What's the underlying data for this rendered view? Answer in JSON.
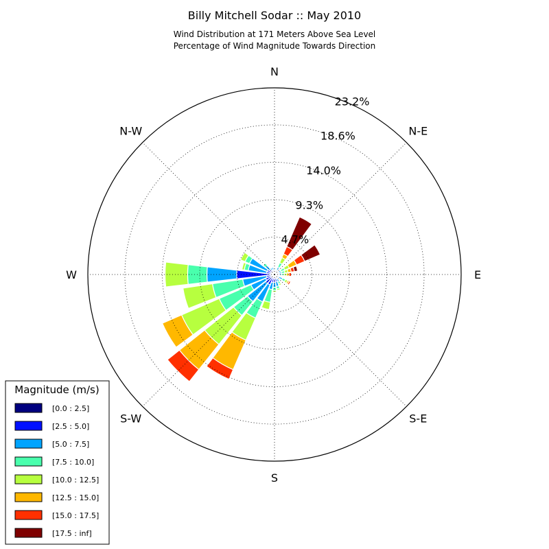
{
  "chart_data": {
    "type": "windrose",
    "title": "Billy Mitchell Sodar :: May 2010",
    "subtitle_lines": [
      "Wind Distribution at 171 Meters Above Sea Level",
      "Percentage of Wind Magnitude Towards Direction"
    ],
    "directions": [
      "N",
      "N-E",
      "E",
      "S-E",
      "S",
      "S-W",
      "W",
      "N-W"
    ],
    "radial_ticks": [
      "4.7%",
      "9.3%",
      "14.0%",
      "18.6%",
      "23.2%"
    ],
    "radial_tick_values": [
      4.65,
      9.3,
      13.95,
      18.6,
      23.2
    ],
    "rmax": 23.2,
    "legend_title": "Magnitude (m/s)",
    "bins": [
      {
        "label": "[0.0 : 2.5]",
        "color": "#00007f"
      },
      {
        "label": "[2.5 : 5.0]",
        "color": "#0010ff"
      },
      {
        "label": "[5.0 : 7.5]",
        "color": "#00a4ff"
      },
      {
        "label": "[7.5 : 10.0]",
        "color": "#49ffad"
      },
      {
        "label": "[10.0 : 12.5]",
        "color": "#b7ff3f"
      },
      {
        "label": "[12.5 : 15.0]",
        "color": "#ffb800"
      },
      {
        "label": "[15.0 : 17.5]",
        "color": "#ff3000"
      },
      {
        "label": "[17.5 : inf]",
        "color": "#7f0000"
      }
    ],
    "sectors": [
      {
        "bearing": 0,
        "values": [
          0.3,
          0.2,
          0.2,
          0,
          0,
          0,
          0,
          0
        ]
      },
      {
        "bearing": 30,
        "values": [
          0.3,
          0.3,
          0.4,
          0.6,
          0.7,
          0.5,
          1.0,
          4.0
        ]
      },
      {
        "bearing": 60,
        "values": [
          0.3,
          0.3,
          0.3,
          0.5,
          0.6,
          1.0,
          1.1,
          2.1
        ]
      },
      {
        "bearing": 75,
        "values": [
          0.3,
          0.3,
          0.3,
          0.4,
          0.4,
          0.4,
          0.4,
          0.4
        ]
      },
      {
        "bearing": 90,
        "values": [
          0.3,
          0.3,
          0.3,
          0.3,
          0.3,
          0.3,
          0.3,
          0
        ]
      },
      {
        "bearing": 120,
        "values": [
          0.3,
          0.3,
          0.5,
          0.4,
          0.3,
          0.2,
          0.2,
          0
        ]
      },
      {
        "bearing": 150,
        "values": [
          0.3,
          0.3,
          0.4,
          0.3,
          0.2,
          0,
          0,
          0
        ]
      },
      {
        "bearing": 165,
        "values": [
          0.3,
          0.6,
          0.6,
          0.3,
          0.2,
          0,
          0,
          0
        ]
      },
      {
        "bearing": 180,
        "values": [
          0.3,
          0.7,
          0.6,
          0.4,
          0.2,
          0,
          0,
          0
        ]
      },
      {
        "bearing": 195,
        "values": [
          0.3,
          0.7,
          0.9,
          1.6,
          0.9,
          0,
          0,
          0
        ]
      },
      {
        "bearing": 210,
        "values": [
          0.3,
          1.1,
          2.3,
          2.2,
          3.0,
          4.0,
          1.3,
          0
        ]
      },
      {
        "bearing": 225,
        "values": [
          0.3,
          1.1,
          2.9,
          2.2,
          4.6,
          4.0,
          1.9,
          0
        ]
      },
      {
        "bearing": 240,
        "values": [
          0.3,
          0.9,
          2.0,
          4.3,
          5.1,
          2.6,
          0,
          0
        ]
      },
      {
        "bearing": 255,
        "values": [
          0.3,
          0.7,
          3.0,
          3.8,
          3.7,
          0,
          0,
          0
        ]
      },
      {
        "bearing": 270,
        "values": [
          0.3,
          4.4,
          3.7,
          2.4,
          2.8,
          0,
          0,
          0
        ]
      },
      {
        "bearing": 285,
        "values": [
          0.3,
          0.7,
          2.3,
          0.5,
          0.3,
          0,
          0,
          0
        ]
      },
      {
        "bearing": 300,
        "values": [
          0.3,
          0.7,
          2.4,
          0.6,
          0.6,
          0,
          0,
          0
        ]
      },
      {
        "bearing": 315,
        "values": [
          0.3,
          0.5,
          0.6,
          0.4,
          0,
          0,
          0,
          0
        ]
      },
      {
        "bearing": 330,
        "values": [
          0.3,
          0.3,
          0.3,
          0,
          0,
          0,
          0,
          0
        ]
      },
      {
        "bearing": 345,
        "values": [
          0.3,
          0.3,
          0.3,
          0,
          0,
          0,
          0,
          0
        ]
      }
    ]
  }
}
